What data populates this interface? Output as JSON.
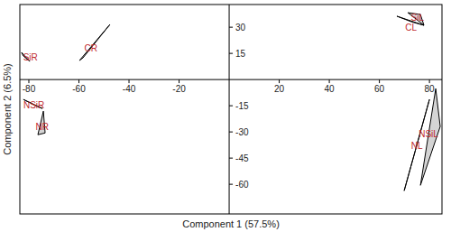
{
  "chart_data": {
    "type": "scatter",
    "x_label": "Component 1 (57.5%)",
    "y_label": "Component 2 (6.5%)",
    "xlim": [
      -83.6,
      85
    ],
    "ylim": [
      -77,
      43
    ],
    "xticks": [
      -80,
      -60,
      -40,
      -20,
      20,
      40,
      60,
      80
    ],
    "yticks": [
      30,
      15,
      -15,
      -30,
      -45,
      -60
    ],
    "grid": false,
    "color": "#cfcfcf",
    "marker": "hull",
    "series": [
      {
        "name": "SiR",
        "x": [
          -82.9,
          -82.2,
          -79.6
        ],
        "values": [
          15.5,
          13.5,
          10.4
        ]
      },
      {
        "name": "CR",
        "x": [
          -59.8,
          -58.4,
          -47.6
        ],
        "values": [
          10.9,
          12.4,
          31.6
        ]
      },
      {
        "name": "NSiR",
        "x": [
          -82.2,
          -77.1,
          -74.6
        ],
        "values": [
          -11.4,
          -15.0,
          -16.6
        ]
      },
      {
        "name": "NR",
        "x": [
          -76.4,
          -74.2,
          -73.5
        ],
        "values": [
          -31.6,
          -18.1,
          -30.6
        ]
      },
      {
        "name": "SiL",
        "x": [
          71.4,
          76.4,
          77.8
        ],
        "values": [
          38.3,
          37.3,
          31.1
        ]
      },
      {
        "name": "CL",
        "x": [
          67.0,
          77.8,
          73.0
        ],
        "values": [
          36.3,
          31.1,
          33.0
        ]
      },
      {
        "name": "NL",
        "x": [
          69.9,
          80.0,
          75.0
        ],
        "values": [
          -63.7,
          -11.4,
          -37.3
        ]
      },
      {
        "name": "NSiL",
        "x": [
          76.4,
          82.5,
          84.3
        ],
        "values": [
          -60.6,
          -5.2,
          -26.9
        ]
      }
    ]
  }
}
